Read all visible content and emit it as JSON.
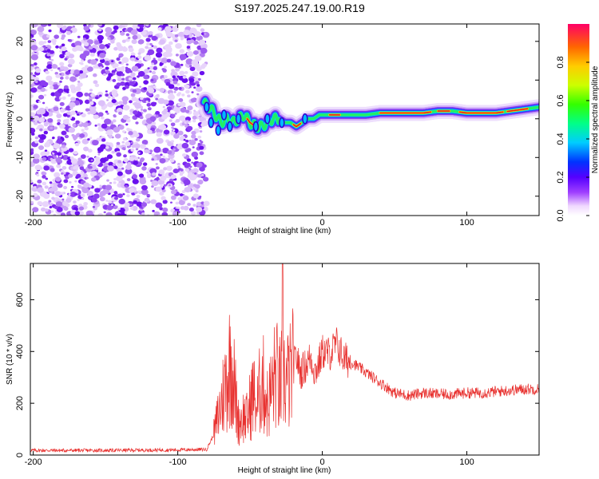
{
  "title": "S197.2025.247.19.00.R19",
  "colors": {
    "axis": "#000000",
    "snr_line": "#e8302e",
    "background": "#ffffff"
  },
  "chart_data": [
    {
      "type": "heatmap",
      "name": "spectrogram",
      "xlabel": "Height of straight line (km)",
      "ylabel": "Frequency (Hz)",
      "xlim": [
        -202,
        150
      ],
      "ylim": [
        -25,
        24.5
      ],
      "xticks": [
        -200,
        -100,
        0,
        100
      ],
      "xtick_labels": [
        "-200",
        "-100",
        "0",
        "100"
      ],
      "yticks": [
        -20,
        -10,
        0,
        10,
        20
      ],
      "ytick_labels": [
        "-20",
        "-10",
        "0",
        "10",
        "20"
      ],
      "noise_region_x": [
        -202,
        -80
      ],
      "ridge": {
        "description_points_x": [
          -82,
          -78,
          -74,
          -70,
          -66,
          -62,
          -58,
          -54,
          -50,
          -46,
          -42,
          -38,
          -34,
          -30,
          -26,
          -22,
          -18,
          -14,
          -10,
          -6,
          -2,
          0,
          10,
          20,
          30,
          40,
          50,
          60,
          70,
          80,
          90,
          100,
          110,
          120,
          130,
          140,
          150
        ],
        "description_points_y": [
          4,
          3,
          1,
          -1,
          0,
          -1,
          0,
          1,
          -1,
          -2,
          -2,
          -1,
          0,
          0,
          -1,
          -1,
          -2,
          -1,
          0,
          0,
          1,
          1,
          1,
          1,
          1,
          1.5,
          1.5,
          1.5,
          1.5,
          2,
          2,
          1.5,
          1.5,
          1.5,
          2,
          2.5,
          3
        ]
      },
      "colorbar": {
        "label": "Normalized spectral amplitude",
        "range": [
          0,
          1
        ],
        "ticks": [
          0.0,
          0.2,
          0.4,
          0.6,
          0.8
        ],
        "tick_labels": [
          "0.0",
          "0.2",
          "0.4",
          "0.6",
          "0.8"
        ]
      }
    },
    {
      "type": "line",
      "name": "snr",
      "xlabel": "Height of straight line (km)",
      "ylabel": "SNR (10 * v/v)",
      "xlim": [
        -202,
        150
      ],
      "ylim": [
        0,
        740
      ],
      "xticks": [
        -200,
        -100,
        0,
        100
      ],
      "xtick_labels": [
        "-200",
        "-100",
        "0",
        "100"
      ],
      "yticks": [
        0,
        200,
        400,
        600
      ],
      "ytick_labels": [
        "0",
        "200",
        "400",
        "600"
      ],
      "series": [
        {
          "name": "SNR",
          "x": [
            -202,
            -150,
            -100,
            -80,
            -75,
            -70,
            -66,
            -63,
            -60,
            -58,
            -55,
            -52,
            -48,
            -45,
            -42,
            -38,
            -35,
            -32,
            -30,
            -28,
            -27.5,
            -27,
            -25,
            -22,
            -18,
            -15,
            -12,
            -8,
            -5,
            -2,
            0,
            5,
            10,
            15,
            20,
            25,
            30,
            35,
            40,
            45,
            50,
            60,
            70,
            80,
            90,
            100,
            110,
            120,
            130,
            140,
            150
          ],
          "values": [
            18,
            18,
            20,
            22,
            80,
            200,
            300,
            380,
            220,
            130,
            150,
            140,
            240,
            180,
            300,
            200,
            250,
            330,
            250,
            300,
            740,
            320,
            280,
            300,
            380,
            320,
            340,
            380,
            320,
            360,
            400,
            390,
            430,
            370,
            360,
            340,
            320,
            300,
            280,
            260,
            240,
            230,
            240,
            235,
            235,
            240,
            240,
            245,
            250,
            255,
            255
          ]
        }
      ]
    }
  ]
}
